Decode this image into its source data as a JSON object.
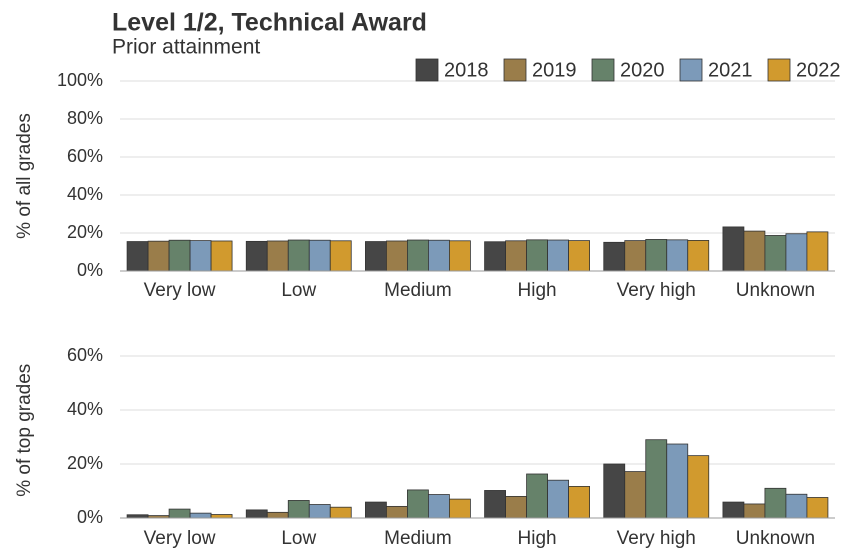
{
  "chart_data": [
    {
      "type": "bar",
      "title": "Level 1/2, Technical Award",
      "subtitle": "Prior attainment",
      "y_label": "% of all grades",
      "categories": [
        "Very low",
        "Low",
        "Medium",
        "High",
        "Very high",
        "Unknown"
      ],
      "series": [
        {
          "name": "2018",
          "color": "#464646",
          "values": [
            15.5,
            15.6,
            15.5,
            15.4,
            15.1,
            23.2
          ]
        },
        {
          "name": "2019",
          "color": "#9a7d4a",
          "values": [
            15.7,
            15.8,
            15.8,
            15.9,
            16.0,
            21.0
          ]
        },
        {
          "name": "2020",
          "color": "#66826a",
          "values": [
            16.2,
            16.3,
            16.3,
            16.4,
            16.6,
            18.7
          ]
        },
        {
          "name": "2021",
          "color": "#7c9ab9",
          "values": [
            16.0,
            16.2,
            16.2,
            16.3,
            16.4,
            19.6
          ]
        },
        {
          "name": "2022",
          "color": "#d19a2e",
          "values": [
            15.8,
            15.9,
            15.9,
            16.0,
            16.1,
            20.6
          ]
        }
      ],
      "ylim": [
        0,
        100
      ],
      "yticks": [
        {
          "value": 0,
          "label": "0%"
        },
        {
          "value": 20,
          "label": "20%"
        },
        {
          "value": 40,
          "label": "40%"
        },
        {
          "value": 60,
          "label": "60%"
        },
        {
          "value": 80,
          "label": "80%"
        },
        {
          "value": 100,
          "label": "100%"
        }
      ],
      "grid": true,
      "legend": "top-right"
    },
    {
      "type": "bar",
      "y_label": "% of top grades",
      "categories": [
        "Very low",
        "Low",
        "Medium",
        "High",
        "Very high",
        "Unknown"
      ],
      "series": [
        {
          "color": "#464646",
          "values": [
            1.2,
            3.0,
            5.9,
            10.2,
            20.0,
            5.9
          ]
        },
        {
          "color": "#9a7d4a",
          "values": [
            0.9,
            2.1,
            4.3,
            8.0,
            17.2,
            5.2
          ]
        },
        {
          "color": "#66826a",
          "values": [
            3.3,
            6.5,
            10.4,
            16.3,
            29.0,
            11.0
          ]
        },
        {
          "color": "#7c9ab9",
          "values": [
            1.8,
            5.0,
            8.7,
            14.0,
            27.4,
            8.8
          ]
        },
        {
          "color": "#d19a2e",
          "values": [
            1.3,
            4.0,
            7.0,
            11.7,
            23.1,
            7.6
          ]
        }
      ],
      "ylim": [
        0,
        65
      ],
      "yticks": [
        {
          "value": 0,
          "label": "0%"
        },
        {
          "value": 20,
          "label": "20%"
        },
        {
          "value": 40,
          "label": "40%"
        },
        {
          "value": 60,
          "label": "60%"
        }
      ],
      "grid": true
    }
  ]
}
